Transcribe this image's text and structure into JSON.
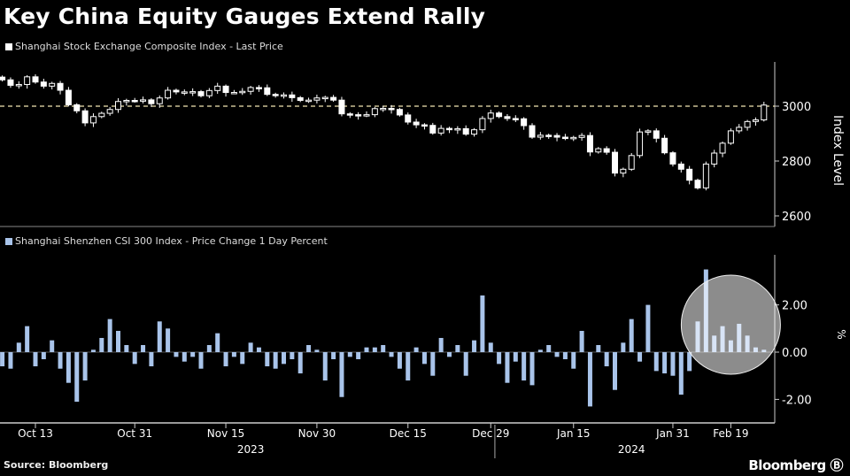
{
  "title": "Key China Equity Gauges Extend Rally",
  "source": "Source: Bloomberg",
  "brand": "Bloomberg",
  "colors": {
    "price": "#ffffff",
    "change": "#a9c4ea",
    "background": "#000000",
    "reference_line": "#f2e6b3"
  },
  "chart_data": [
    {
      "type": "candlestick",
      "legend": "Shanghai Stock Exchange Composite Index - Last Price",
      "ylabel": "Index Level",
      "ylim": [
        2590,
        3160
      ],
      "yticks": [
        2600,
        2800,
        3000
      ],
      "reference_line": 3000,
      "close": [
        3096,
        3076,
        3079,
        3107,
        3088,
        3073,
        3083,
        3058,
        3005,
        2983,
        2939,
        2962,
        2974,
        2988,
        3017,
        3021,
        3019,
        3023,
        3009,
        3030,
        3058,
        3052,
        3052,
        3053,
        3038,
        3057,
        3073,
        3050,
        3050,
        3054,
        3068,
        3067,
        3043,
        3040,
        3041,
        3031,
        3021,
        3022,
        3030,
        3032,
        3022,
        2972,
        2969,
        2966,
        2969,
        2991,
        2992,
        2988,
        2968,
        2942,
        2932,
        2930,
        2902,
        2919,
        2914,
        2918,
        2898,
        2914,
        2955,
        2975,
        2962,
        2955,
        2954,
        2929,
        2887,
        2894,
        2893,
        2887,
        2882,
        2886,
        2893,
        2833,
        2845,
        2832,
        2756,
        2770,
        2820,
        2906,
        2910,
        2883,
        2830,
        2789,
        2770,
        2730,
        2702,
        2789,
        2829,
        2865,
        2910,
        2923,
        2944,
        2950,
        3004
      ]
    },
    {
      "type": "bar",
      "legend": "Shanghai Shenzhen CSI 300 Index - Price Change 1 Day Percent",
      "ylabel": "%",
      "ylim": [
        -3.0,
        4.0
      ],
      "yticks": [
        -2.0,
        0.0,
        2.0
      ],
      "ytick_labels": [
        "-2.00",
        "0.00",
        "2.00"
      ],
      "values": [
        -0.6,
        -0.7,
        0.4,
        1.1,
        -0.6,
        -0.3,
        0.5,
        -0.7,
        -1.3,
        -2.1,
        -1.2,
        0.1,
        0.6,
        1.4,
        0.9,
        0.3,
        -0.5,
        0.3,
        -0.6,
        1.3,
        1.0,
        -0.2,
        -0.4,
        -0.2,
        -0.7,
        0.3,
        0.8,
        -0.6,
        -0.2,
        -0.5,
        0.4,
        0.2,
        -0.6,
        -0.7,
        -0.5,
        -0.3,
        -0.9,
        0.3,
        0.1,
        -1.2,
        -0.3,
        -1.9,
        -0.2,
        -0.3,
        0.2,
        0.2,
        0.3,
        -0.2,
        -0.7,
        -1.2,
        0.2,
        -0.5,
        -1.0,
        0.6,
        -0.2,
        0.3,
        -1.0,
        0.5,
        2.4,
        0.4,
        -0.5,
        -1.3,
        -0.4,
        -1.2,
        -1.4,
        0.1,
        0.3,
        -0.2,
        -0.3,
        -0.7,
        0.9,
        -2.3,
        0.3,
        -0.6,
        -1.6,
        0.4,
        1.4,
        -0.4,
        2.0,
        -0.8,
        -0.9,
        -1.0,
        -1.8,
        -0.8,
        1.3,
        3.5,
        0.7,
        1.1,
        0.5,
        1.2,
        0.7,
        0.2,
        0.1
      ],
      "highlight_range": [
        84,
        92
      ]
    }
  ],
  "xaxis": {
    "ticks": [
      {
        "index": 4,
        "label": "Oct 13"
      },
      {
        "index": 16,
        "label": "Oct 31"
      },
      {
        "index": 27,
        "label": "Nov 15"
      },
      {
        "index": 38,
        "label": "Nov 30"
      },
      {
        "index": 49,
        "label": "Dec 15"
      },
      {
        "index": 59,
        "label": "Dec 29"
      },
      {
        "index": 69,
        "label": "Jan 15"
      },
      {
        "index": 81,
        "label": "Jan 31"
      },
      {
        "index": 88,
        "label": "Feb 19"
      }
    ],
    "years": [
      {
        "index": 30,
        "label": "2023"
      },
      {
        "index": 76,
        "label": "2024"
      }
    ],
    "year_divider_index": 59.5
  }
}
